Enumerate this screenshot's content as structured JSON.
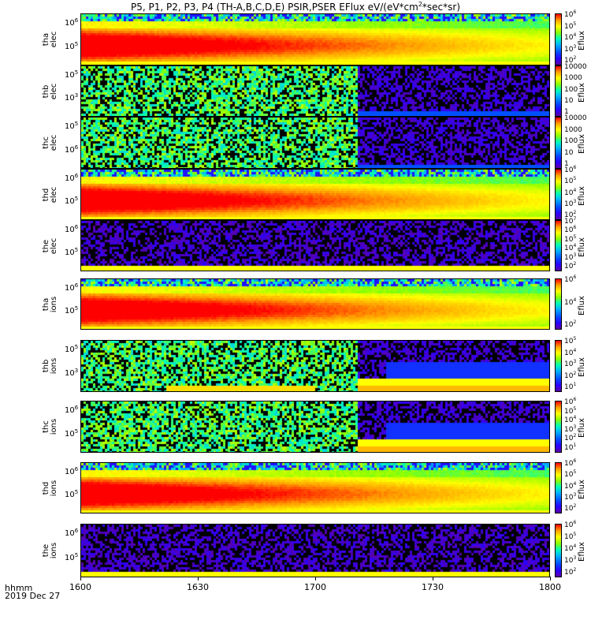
{
  "title": "P5, P1, P2, P3, P4 (TH-A,B,C,D,E) PSIR,PSER EFlux eV/(eV*cm",
  "title_sup": "2",
  "title_end": "*sec*sr)",
  "x_tick_labels": [
    "1600",
    "1630",
    "1700",
    "1730",
    "1800"
  ],
  "time_label": "hhmm",
  "date_label": "2019 Dec 27",
  "colorbar_label": "Eflux",
  "colors": {
    "red": "#ff0000",
    "yellow": "#ffff00",
    "cyan": "#00ffff",
    "purple": "#5a00a8"
  },
  "chart_data": {
    "type": "heatmap",
    "x_range": [
      "16:00",
      "18:00"
    ],
    "x_ticks": [
      "1600",
      "1630",
      "1700",
      "1730",
      "1800"
    ],
    "panels": [
      {
        "probe": "tha",
        "species": "elec",
        "y_ticks": [
          "10^6",
          "10^5"
        ],
        "colorbar_ticks": [
          "10^6",
          "10^5",
          "10^4",
          "10^3",
          "10^2"
        ],
        "style": "smooth"
      },
      {
        "probe": "thb",
        "species": "elec",
        "y_ticks": [
          "10^5",
          "10^3"
        ],
        "colorbar_ticks": [
          "10000",
          "1000",
          "100",
          "10",
          "1"
        ],
        "style": "noisy",
        "data_end_fraction": 0.59
      },
      {
        "probe": "thc",
        "species": "elec",
        "y_ticks": [
          "10^5",
          "10^6"
        ],
        "colorbar_ticks": [
          "10000",
          "1000",
          "100",
          "10",
          "1"
        ],
        "style": "noisy",
        "data_end_fraction": 0.59
      },
      {
        "probe": "thd",
        "species": "elec",
        "y_ticks": [
          "10^6",
          "10^5"
        ],
        "colorbar_ticks": [
          "10^6",
          "10^5",
          "10^4",
          "10^3",
          "10^2"
        ],
        "style": "smooth"
      },
      {
        "probe": "the",
        "species": "elec",
        "y_ticks": [
          "10^6",
          "10^5"
        ],
        "colorbar_ticks": [
          "10^7",
          "10^6",
          "10^5",
          "10^4",
          "10^3",
          "10^2"
        ],
        "style": "low"
      },
      {
        "probe": "tha",
        "species": "ions",
        "y_ticks": [
          "10^6",
          "10^5"
        ],
        "colorbar_ticks": [
          "10^6",
          "10^4",
          "10^2"
        ],
        "style": "smooth"
      },
      {
        "probe": "thb",
        "species": "ions",
        "y_ticks": [
          "10^5",
          "10^3"
        ],
        "colorbar_ticks": [
          "10^5",
          "10^4",
          "10^3",
          "10^2",
          "10^1"
        ],
        "style": "noisy",
        "data_end_fraction": 0.59
      },
      {
        "probe": "thc",
        "species": "ions",
        "y_ticks": [
          "10^6",
          "10^5"
        ],
        "colorbar_ticks": [
          "10^6",
          "10^5",
          "10^4",
          "10^3",
          "10^2",
          "10^1"
        ],
        "style": "noisy",
        "data_end_fraction": 0.59
      },
      {
        "probe": "thd",
        "species": "ions",
        "y_ticks": [
          "10^6",
          "10^5"
        ],
        "colorbar_ticks": [
          "10^6",
          "10^5",
          "10^4",
          "10^3",
          "10^2"
        ],
        "style": "smooth"
      },
      {
        "probe": "the",
        "species": "ions",
        "y_ticks": [
          "10^6",
          "10^5"
        ],
        "colorbar_ticks": [
          "10^6",
          "10^5",
          "10^4",
          "10^3",
          "10^2"
        ],
        "style": "low"
      }
    ]
  }
}
